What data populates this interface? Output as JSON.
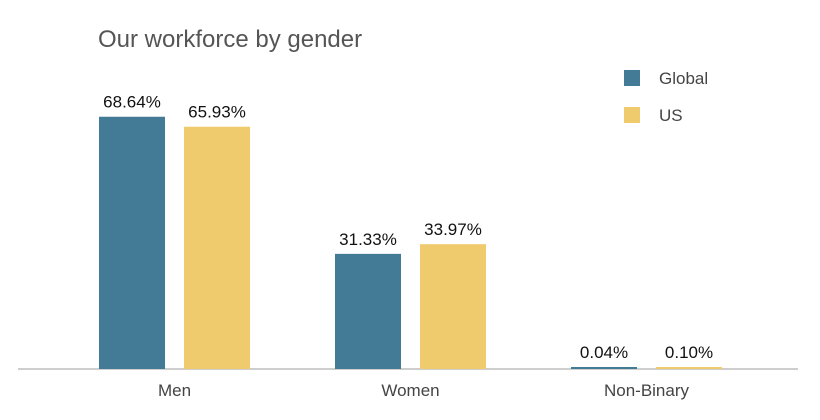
{
  "chart_data": {
    "type": "bar",
    "title": "Our workforce by gender",
    "categories": [
      "Men",
      "Women",
      "Non-Binary"
    ],
    "series": [
      {
        "name": "Global",
        "values": [
          68.64,
          31.33,
          0.04
        ],
        "labels": [
          "68.64%",
          "31.33%",
          "0.04%"
        ],
        "color": "#437B96"
      },
      {
        "name": "US",
        "values": [
          65.93,
          33.97,
          0.1
        ],
        "labels": [
          "65.93%",
          "33.97%",
          "0.10%"
        ],
        "color": "#EFCB6E"
      }
    ],
    "ylim": [
      0,
      100
    ],
    "legend_position": "top-right",
    "grid": false
  }
}
